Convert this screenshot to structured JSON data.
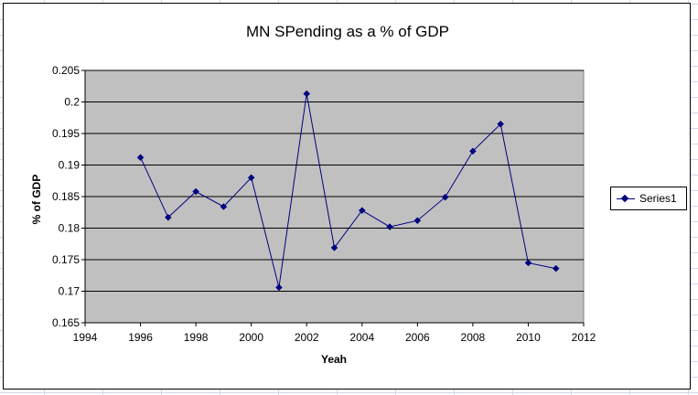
{
  "chart_data": {
    "type": "line",
    "title": "MN SPending as a % of GDP",
    "xlabel": "Yeah",
    "ylabel": "% of GDP",
    "xlim": [
      1994,
      2012
    ],
    "ylim": [
      0.165,
      0.205
    ],
    "x_ticks": [
      "1994",
      "1996",
      "1998",
      "2000",
      "2002",
      "2004",
      "2006",
      "2008",
      "2010",
      "2012"
    ],
    "y_ticks": [
      "0.165",
      "0.17",
      "0.175",
      "0.18",
      "0.185",
      "0.19",
      "0.195",
      "0.2",
      "0.205"
    ],
    "grid": "horizontal",
    "plot_background": "#c0c0c0",
    "legend_position": "right",
    "series": [
      {
        "name": "Series1",
        "color": "#000080",
        "marker": "diamond",
        "x": [
          1996,
          1997,
          1998,
          1999,
          2000,
          2001,
          2002,
          2003,
          2004,
          2005,
          2006,
          2007,
          2008,
          2009,
          2010,
          2011
        ],
        "values": [
          0.1912,
          0.1817,
          0.1858,
          0.1834,
          0.188,
          0.1706,
          0.2013,
          0.1769,
          0.1828,
          0.1802,
          0.1812,
          0.1849,
          0.1922,
          0.1965,
          0.1745,
          0.1736
        ]
      }
    ]
  }
}
